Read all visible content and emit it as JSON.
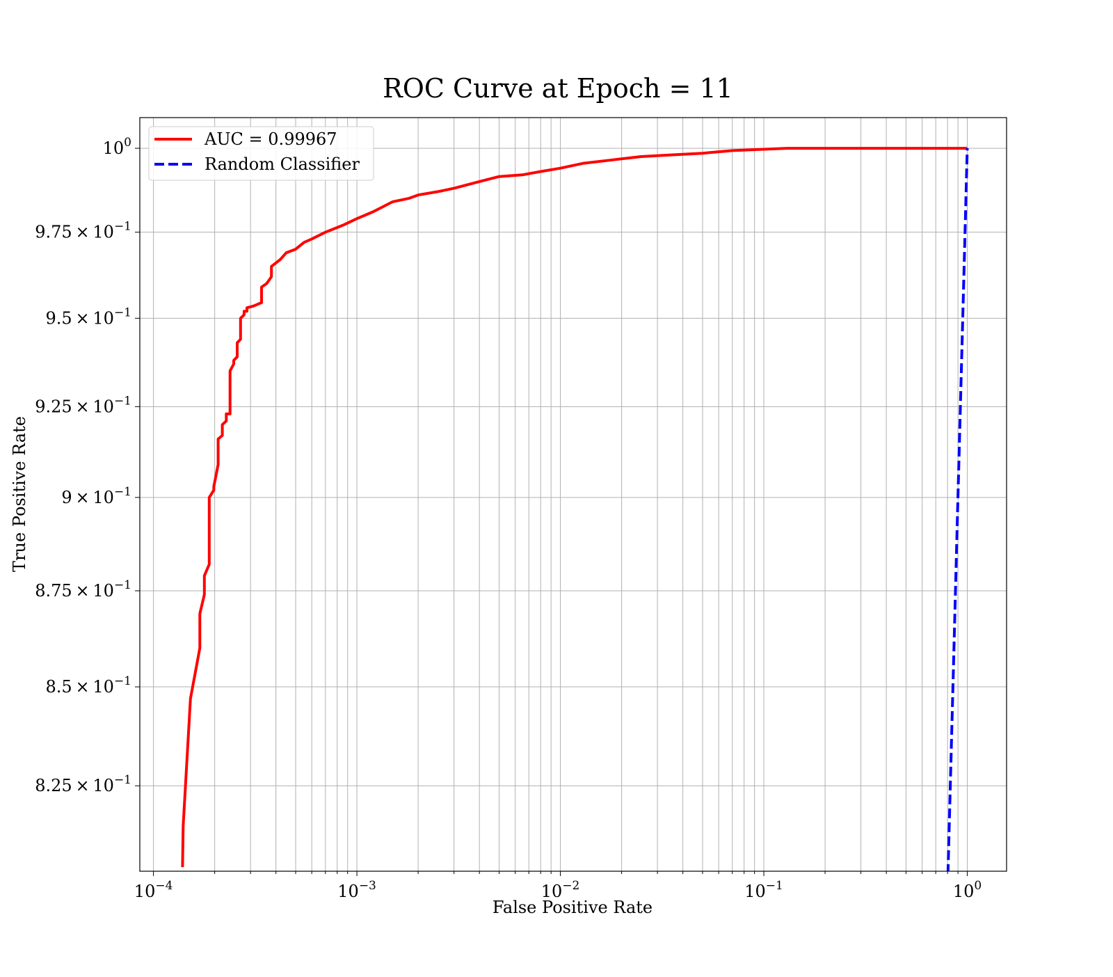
{
  "chart_data": {
    "type": "line",
    "title": "ROC Curve at Epoch = 11",
    "xlabel": "False Positive Rate",
    "ylabel": "True Positive Rate",
    "xscale": "log",
    "yscale": "log",
    "xlim": [
      8.57e-05,
      1.56
    ],
    "ylim": [
      0.804,
      1.0093
    ],
    "grid": true,
    "legend_position": "top-left",
    "x_ticks": [
      {
        "value": 0.0001,
        "mantissa": "10",
        "exponent": "−4"
      },
      {
        "value": 0.001,
        "mantissa": "10",
        "exponent": "−3"
      },
      {
        "value": 0.01,
        "mantissa": "10",
        "exponent": "−2"
      },
      {
        "value": 0.1,
        "mantissa": "10",
        "exponent": "−1"
      },
      {
        "value": 1,
        "mantissa": "10",
        "exponent": "0"
      }
    ],
    "y_ticks": [
      {
        "value": 0.825,
        "mantissa": "8.25 × 10",
        "exponent": "−1"
      },
      {
        "value": 0.85,
        "mantissa": "8.5 × 10",
        "exponent": "−1"
      },
      {
        "value": 0.875,
        "mantissa": "8.75 × 10",
        "exponent": "−1"
      },
      {
        "value": 0.9,
        "mantissa": "9 × 10",
        "exponent": "−1"
      },
      {
        "value": 0.925,
        "mantissa": "9.25 × 10",
        "exponent": "−1"
      },
      {
        "value": 0.95,
        "mantissa": "9.5 × 10",
        "exponent": "−1"
      },
      {
        "value": 0.975,
        "mantissa": "9.75 × 10",
        "exponent": "−1"
      },
      {
        "value": 1.0,
        "mantissa": "10",
        "exponent": "0"
      }
    ],
    "series": [
      {
        "name": "AUC = 0.99967",
        "color": "#ff0000",
        "style": "solid",
        "x": [
          0.000139,
          0.00014,
          0.000152,
          0.000169,
          0.000169,
          0.000178,
          0.000178,
          0.000188,
          0.000188,
          0.000198,
          0.000198,
          0.000208,
          0.000208,
          0.000218,
          0.000218,
          0.000228,
          0.000228,
          0.000238,
          0.000238,
          0.000248,
          0.000248,
          0.000258,
          0.000258,
          0.000268,
          0.000268,
          0.000279,
          0.000279,
          0.000288,
          0.000288,
          0.00031,
          0.00034,
          0.00034,
          0.00036,
          0.00038,
          0.00038,
          0.0004,
          0.00042,
          0.00045,
          0.0005,
          0.00055,
          0.0006,
          0.0007,
          0.00085,
          0.001,
          0.0012,
          0.0015,
          0.0018,
          0.002,
          0.0025,
          0.003,
          0.004,
          0.005,
          0.0065,
          0.008,
          0.01,
          0.013,
          0.018,
          0.025,
          0.035,
          0.05,
          0.07,
          0.1,
          0.13,
          0.2,
          0.3,
          0.5,
          0.7,
          1.0
        ],
        "y": [
          0.805,
          0.815,
          0.847,
          0.86,
          0.869,
          0.874,
          0.879,
          0.882,
          0.9,
          0.902,
          0.903,
          0.909,
          0.916,
          0.917,
          0.92,
          0.921,
          0.923,
          0.923,
          0.935,
          0.937,
          0.938,
          0.939,
          0.943,
          0.944,
          0.95,
          0.951,
          0.952,
          0.952,
          0.953,
          0.9535,
          0.9545,
          0.959,
          0.96,
          0.962,
          0.965,
          0.966,
          0.967,
          0.969,
          0.97,
          0.972,
          0.973,
          0.975,
          0.977,
          0.979,
          0.981,
          0.984,
          0.985,
          0.986,
          0.987,
          0.988,
          0.99,
          0.9915,
          0.992,
          0.993,
          0.994,
          0.9955,
          0.9965,
          0.9975,
          0.998,
          0.9985,
          0.9993,
          0.9997,
          1.0,
          1.0,
          1.0,
          1.0,
          1.0,
          1.0
        ]
      },
      {
        "name": "Random Classifier",
        "color": "#0000ff",
        "style": "dashed",
        "x": [
          0.8,
          0.85,
          0.9,
          0.95,
          1.0
        ],
        "y": [
          0.8,
          0.85,
          0.9,
          0.95,
          1.0
        ]
      }
    ]
  }
}
